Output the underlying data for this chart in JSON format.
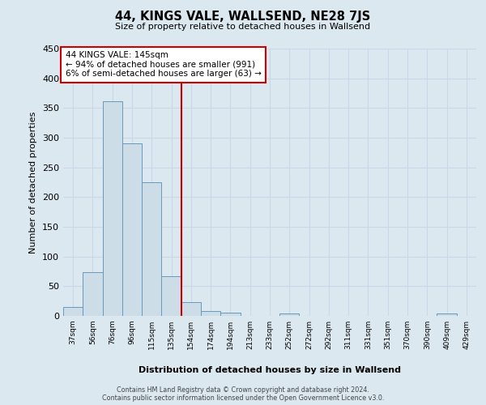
{
  "title": "44, KINGS VALE, WALLSEND, NE28 7JS",
  "subtitle": "Size of property relative to detached houses in Wallsend",
  "xlabel": "Distribution of detached houses by size in Wallsend",
  "ylabel": "Number of detached properties",
  "bin_labels": [
    "37sqm",
    "56sqm",
    "76sqm",
    "96sqm",
    "115sqm",
    "135sqm",
    "154sqm",
    "174sqm",
    "194sqm",
    "213sqm",
    "233sqm",
    "252sqm",
    "272sqm",
    "292sqm",
    "311sqm",
    "331sqm",
    "351sqm",
    "370sqm",
    "390sqm",
    "409sqm",
    "429sqm"
  ],
  "bar_heights": [
    15,
    73,
    362,
    290,
    225,
    67,
    23,
    8,
    5,
    0,
    0,
    4,
    0,
    0,
    0,
    0,
    0,
    0,
    0,
    4,
    0
  ],
  "bar_color": "#ccdde8",
  "bar_edge_color": "#6699bb",
  "vline_x": 5.5,
  "vline_color": "#cc0000",
  "annotation_box_text": "44 KINGS VALE: 145sqm\n← 94% of detached houses are smaller (991)\n6% of semi-detached houses are larger (63) →",
  "annotation_box_color": "#cc0000",
  "annotation_box_fill": "white",
  "ylim": [
    0,
    450
  ],
  "yticks": [
    0,
    50,
    100,
    150,
    200,
    250,
    300,
    350,
    400,
    450
  ],
  "grid_color": "#c8d8e8",
  "bg_color": "#dce8f0",
  "footer1": "Contains HM Land Registry data © Crown copyright and database right 2024.",
  "footer2": "Contains public sector information licensed under the Open Government Licence v3.0."
}
